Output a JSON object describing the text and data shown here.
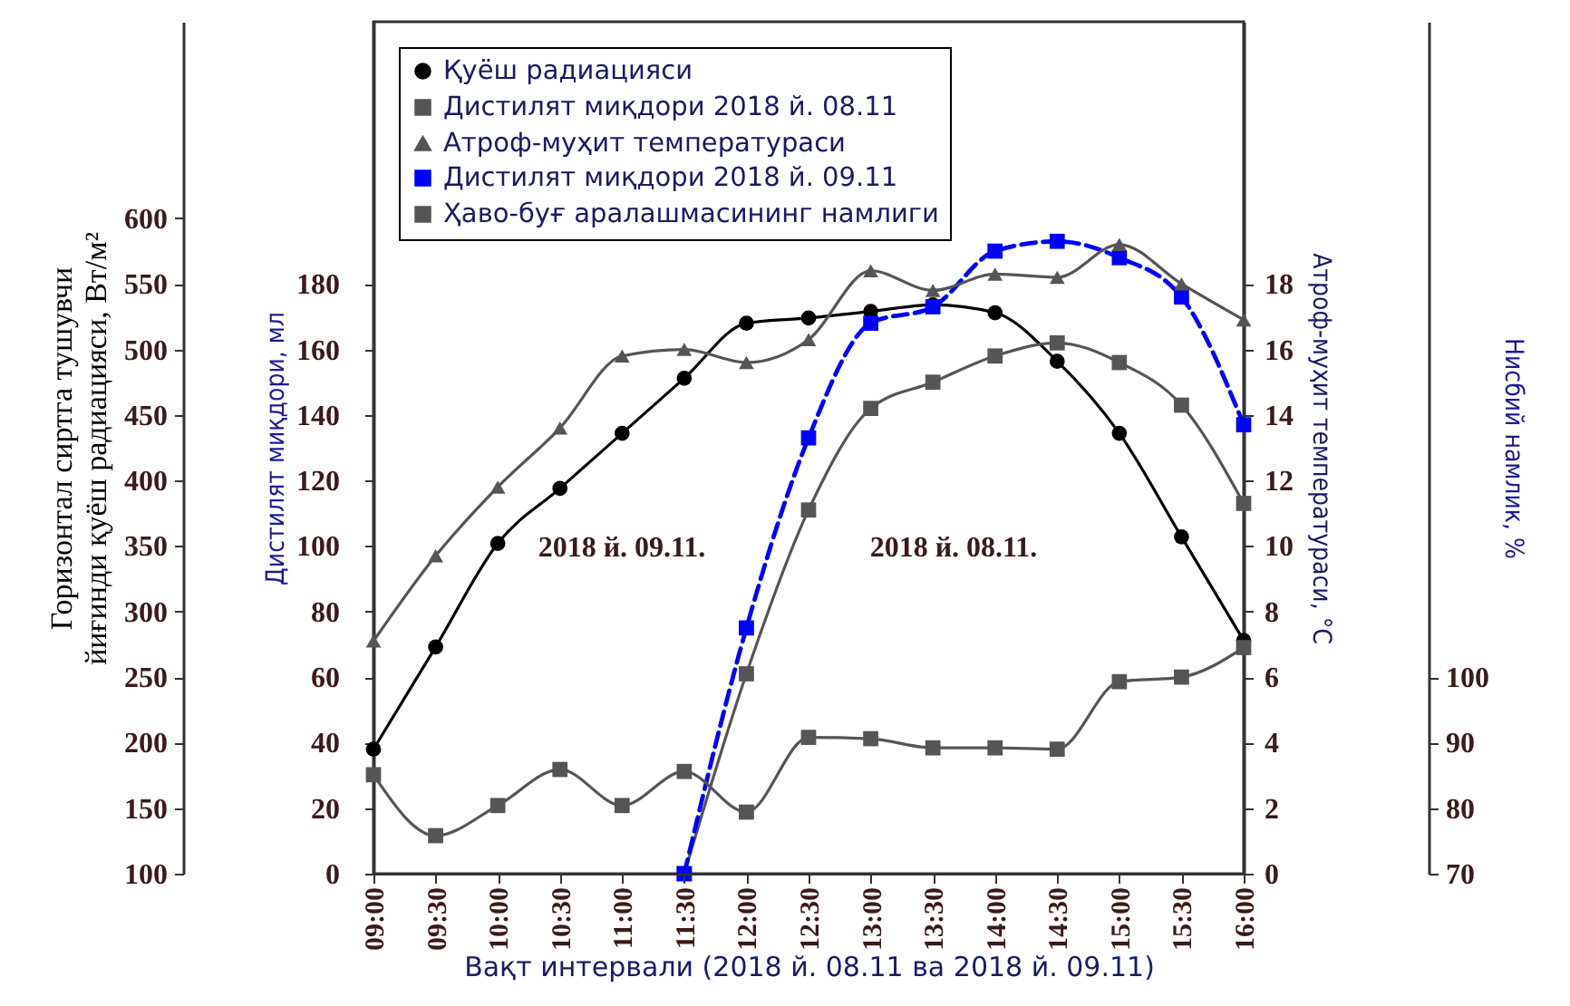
{
  "chart_data": [
    {
      "type": "line",
      "categories": [
        "09:00",
        "09:30",
        "10:00",
        "10:30",
        "11:00",
        "11:30",
        "12:00",
        "12:30",
        "13:00",
        "13:30",
        "14:00",
        "14:30",
        "15:00",
        "15:30",
        "16:00"
      ],
      "xlabel": "Вақт интервали (2018 й. 08.11 ва 2018 й. 09.11)",
      "ylabel": "Горизонтал сиртга тушувчи йиғинди қуёш радиацияси, Вт/м²",
      "ylim": [
        100,
        750
      ],
      "yticks": [
        100,
        150,
        200,
        250,
        300,
        350,
        400,
        450,
        500,
        550,
        600
      ],
      "y2label": "Дистилят миқдори, мл",
      "y2lim": [
        0,
        260
      ],
      "y2ticks": [
        0,
        20,
        40,
        60,
        80,
        100,
        120,
        140,
        160,
        180
      ],
      "y3label": "Атроф-муҳит температураси, °C",
      "y3lim": [
        0,
        26
      ],
      "y3ticks": [
        0,
        2,
        4,
        6,
        8,
        10,
        12,
        14,
        16,
        18
      ],
      "legend": "top left",
      "annotations": [
        "2018 й. 09.11.",
        "2018 й. 08.11."
      ],
      "series": [
        {
          "name": "Қуёш радиацияси",
          "color": "#000000",
          "axis": "y",
          "marker": "circle",
          "values": [
            195,
            273,
            352,
            394,
            436,
            478,
            520,
            524,
            529,
            534,
            528,
            491,
            436,
            357,
            278
          ]
        },
        {
          "name": "Дистилят миқдори  2018 й. 08.11",
          "color": "#555555",
          "axis": "y2",
          "marker": "square",
          "values": [
            null,
            null,
            null,
            null,
            null,
            0,
            61,
            111,
            142,
            150,
            158,
            162,
            156,
            143,
            113
          ]
        },
        {
          "name": "Атроф-муҳит температураси",
          "color": "#555555",
          "axis": "y3",
          "marker": "triangle",
          "values": [
            7.1,
            9.7,
            11.8,
            13.6,
            15.8,
            16.0,
            15.6,
            16.3,
            18.4,
            17.8,
            18.3,
            18.2,
            19.2,
            18.0,
            16.9
          ]
        },
        {
          "name": "Дистилят миқдори  2018 й. 09.11",
          "color": "#0000ff",
          "axis": "y2",
          "marker": "square",
          "line_style": "dashed",
          "values": [
            null,
            null,
            null,
            null,
            null,
            0,
            75,
            133,
            168,
            173,
            190,
            193,
            188,
            176,
            137
          ]
        }
      ]
    },
    {
      "type": "line",
      "categories": [
        null,
        null,
        null,
        null,
        null,
        null,
        null,
        null,
        null,
        null,
        null,
        null,
        null,
        null,
        null
      ],
      "ylabel": "Нисбий намлик, %",
      "ylim": [
        70,
        200
      ],
      "yticks": [
        70,
        80,
        90,
        100
      ],
      "tick_labels": "y",
      "series": [
        {
          "name": "Ҳаво-буғ аралашмасининг намлиги",
          "color": "#555555",
          "marker": "square",
          "values": [
            85.1,
            75.8,
            80.4,
            85.9,
            80.4,
            85.6,
            79.4,
            90.8,
            90.6,
            89.2,
            89.2,
            89.0,
            99.3,
            100.0,
            104.5
          ]
        }
      ]
    }
  ]
}
